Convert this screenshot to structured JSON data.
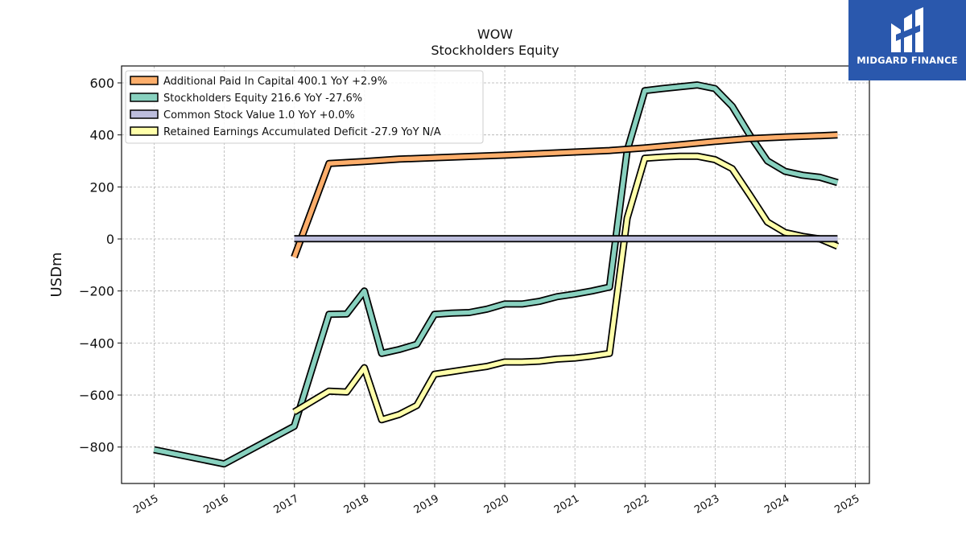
{
  "header": {
    "ticker": "WOW",
    "title": "Stockholders  Equity"
  },
  "brand": {
    "name": "MIDGARD FINANCE",
    "bg_color": "#2a58ad"
  },
  "chart_data": {
    "type": "line",
    "title": "Stockholders  Equity",
    "ylabel": "USDm",
    "xlim": [
      "2014-07-15",
      "2025-03-15"
    ],
    "ylim": [
      -940,
      665
    ],
    "yticks": [
      -800,
      -600,
      -400,
      -200,
      0,
      200,
      400,
      600
    ],
    "xticks": [
      "2015",
      "2016",
      "2017",
      "2018",
      "2019",
      "2020",
      "2021",
      "2022",
      "2023",
      "2024",
      "2025"
    ],
    "grid": true,
    "legend_position": "top-left",
    "series": [
      {
        "name": "Stockholders Equity",
        "legend": "Stockholders Equity  216.6 YoY -27.6%",
        "color": "#88d1bf",
        "points": [
          [
            "2014-12-31",
            -810
          ],
          [
            "2015-12-31",
            -865
          ],
          [
            "2016-12-31",
            -720
          ],
          [
            "2017-06-30",
            -290
          ],
          [
            "2017-09-30",
            -288
          ],
          [
            "2017-12-31",
            -200
          ],
          [
            "2018-03-31",
            -440
          ],
          [
            "2018-06-30",
            -425
          ],
          [
            "2018-09-30",
            -405
          ],
          [
            "2018-12-31",
            -290
          ],
          [
            "2019-03-31",
            -285
          ],
          [
            "2019-06-30",
            -283
          ],
          [
            "2019-09-30",
            -270
          ],
          [
            "2019-12-31",
            -250
          ],
          [
            "2020-03-31",
            -250
          ],
          [
            "2020-06-30",
            -240
          ],
          [
            "2020-09-30",
            -222
          ],
          [
            "2020-12-31",
            -212
          ],
          [
            "2021-03-31",
            -200
          ],
          [
            "2021-06-30",
            -185
          ],
          [
            "2021-09-30",
            340
          ],
          [
            "2021-12-31",
            570
          ],
          [
            "2022-03-31",
            578
          ],
          [
            "2022-06-30",
            585
          ],
          [
            "2022-09-30",
            592
          ],
          [
            "2022-12-31",
            578
          ],
          [
            "2023-03-31",
            510
          ],
          [
            "2023-06-30",
            400
          ],
          [
            "2023-09-30",
            300
          ],
          [
            "2023-12-31",
            260
          ],
          [
            "2024-03-31",
            245
          ],
          [
            "2024-06-30",
            237
          ],
          [
            "2024-09-30",
            217
          ]
        ]
      },
      {
        "name": "Retained Earnings Accumulated Deficit",
        "legend": "Retained Earnings Accumulated Deficit  -27.9 YoY N/A",
        "color": "#ffffaa",
        "points": [
          [
            "2016-12-31",
            -665
          ],
          [
            "2017-06-30",
            -585
          ],
          [
            "2017-09-30",
            -588
          ],
          [
            "2017-12-31",
            -495
          ],
          [
            "2018-03-31",
            -695
          ],
          [
            "2018-06-30",
            -675
          ],
          [
            "2018-09-30",
            -640
          ],
          [
            "2018-12-31",
            -520
          ],
          [
            "2019-03-31",
            -510
          ],
          [
            "2019-06-30",
            -500
          ],
          [
            "2019-09-30",
            -490
          ],
          [
            "2019-12-31",
            -473
          ],
          [
            "2020-03-31",
            -473
          ],
          [
            "2020-06-30",
            -470
          ],
          [
            "2020-09-30",
            -462
          ],
          [
            "2020-12-31",
            -458
          ],
          [
            "2021-03-31",
            -450
          ],
          [
            "2021-06-30",
            -440
          ],
          [
            "2021-09-30",
            80
          ],
          [
            "2021-12-31",
            310
          ],
          [
            "2022-03-31",
            315
          ],
          [
            "2022-06-30",
            318
          ],
          [
            "2022-09-30",
            318
          ],
          [
            "2022-12-31",
            305
          ],
          [
            "2023-03-31",
            270
          ],
          [
            "2023-06-30",
            170
          ],
          [
            "2023-09-30",
            65
          ],
          [
            "2023-12-31",
            25
          ],
          [
            "2024-03-31",
            10
          ],
          [
            "2024-06-30",
            0
          ],
          [
            "2024-09-30",
            -28
          ]
        ]
      },
      {
        "name": "Additional Paid In Capital",
        "legend": "Additional Paid In Capital  400.1 YoY +2.9%",
        "color": "#fdae6b",
        "points": [
          [
            "2016-12-31",
            -70
          ],
          [
            "2017-06-30",
            290
          ],
          [
            "2017-12-31",
            298
          ],
          [
            "2018-06-30",
            307
          ],
          [
            "2018-12-31",
            312
          ],
          [
            "2019-06-30",
            317
          ],
          [
            "2019-12-31",
            322
          ],
          [
            "2020-06-30",
            328
          ],
          [
            "2020-12-31",
            334
          ],
          [
            "2021-06-30",
            340
          ],
          [
            "2021-12-31",
            350
          ],
          [
            "2022-06-30",
            362
          ],
          [
            "2022-12-31",
            375
          ],
          [
            "2023-06-30",
            386
          ],
          [
            "2023-12-31",
            392
          ],
          [
            "2024-06-30",
            397
          ],
          [
            "2024-09-30",
            400
          ]
        ]
      },
      {
        "name": "Common Stock Value",
        "legend": "Common Stock Value  1.0 YoY +0.0%",
        "color": "#bcbddc",
        "points": [
          [
            "2016-12-31",
            1.0
          ],
          [
            "2024-09-30",
            1.0
          ]
        ]
      }
    ],
    "legend_order": [
      "Additional Paid In Capital",
      "Stockholders Equity",
      "Common Stock Value",
      "Retained Earnings Accumulated Deficit"
    ]
  }
}
